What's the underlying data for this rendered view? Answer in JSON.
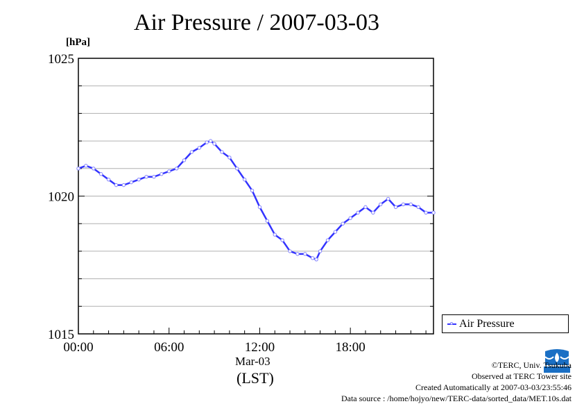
{
  "chart_data": {
    "type": "line",
    "title": "Air Pressure / 2007-03-03",
    "ylabel": "[hPa]",
    "xlabel": "(LST)",
    "date_label": "Mar-03",
    "ylim": [
      1015,
      1025
    ],
    "y_ticks": [
      "1015",
      "1020",
      "1025"
    ],
    "x_range_hours": [
      0,
      23.5
    ],
    "x_ticks": [
      {
        "hour": 0,
        "label": "00:00"
      },
      {
        "hour": 6,
        "label": "06:00"
      },
      {
        "hour": 12,
        "label": "12:00"
      },
      {
        "hour": 18,
        "label": "18:00"
      }
    ],
    "grid": "horizontal",
    "legend_position": "bottom-right",
    "series": [
      {
        "name": "Air Pressure",
        "color": "#3333ff",
        "marker_color": "#8080ff",
        "hours": [
          0,
          0.5,
          1.0,
          1.5,
          2.0,
          2.5,
          3.0,
          3.5,
          4.0,
          4.5,
          5.0,
          5.5,
          6.0,
          6.5,
          7.0,
          7.5,
          8.0,
          8.5,
          8.75,
          9.0,
          9.5,
          10.0,
          10.5,
          11.0,
          11.5,
          12.0,
          12.5,
          13.0,
          13.5,
          14.0,
          14.5,
          15.0,
          15.5,
          15.75,
          16.0,
          16.5,
          17.0,
          17.5,
          18.0,
          18.5,
          19.0,
          19.5,
          20.0,
          20.5,
          21.0,
          21.5,
          22.0,
          22.5,
          23.0,
          23.5
        ],
        "values": [
          1021.0,
          1021.1,
          1021.0,
          1020.8,
          1020.6,
          1020.4,
          1020.4,
          1020.5,
          1020.6,
          1020.7,
          1020.7,
          1020.8,
          1020.9,
          1021.0,
          1021.3,
          1021.6,
          1021.75,
          1021.95,
          1022.0,
          1021.9,
          1021.6,
          1021.4,
          1021.0,
          1020.6,
          1020.2,
          1019.6,
          1019.1,
          1018.6,
          1018.4,
          1018.0,
          1017.9,
          1017.9,
          1017.75,
          1017.7,
          1018.0,
          1018.4,
          1018.7,
          1019.0,
          1019.2,
          1019.4,
          1019.6,
          1019.4,
          1019.7,
          1019.9,
          1019.6,
          1019.7,
          1019.7,
          1019.6,
          1019.4,
          1019.4
        ]
      }
    ]
  },
  "credits": {
    "copyright": "©TERC, Univ. Tsukuba",
    "observed": "Observed at TERC Tower site",
    "created": "Created Automatically at 2007-03-03/23:55:46",
    "source": "Data source : /home/hojyo/new/TERC-data/sorted_data/MET.10s.dat",
    "logo_text": "TERC"
  }
}
